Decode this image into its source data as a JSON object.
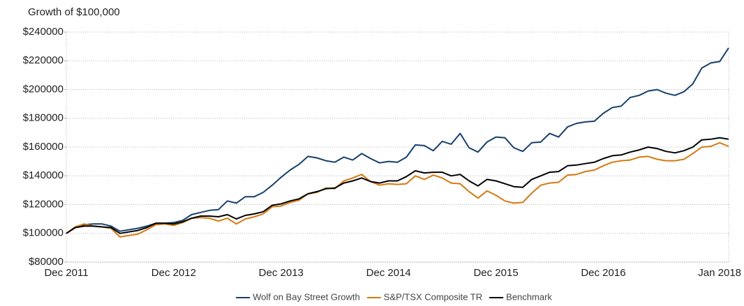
{
  "chart_data": {
    "type": "line",
    "title": "Growth of $100,000",
    "categories": [
      "Dec 2011",
      null,
      null,
      null,
      null,
      null,
      null,
      null,
      null,
      null,
      null,
      null,
      "Dec 2012",
      null,
      null,
      null,
      null,
      null,
      null,
      null,
      null,
      null,
      null,
      null,
      "Dec 2013",
      null,
      null,
      null,
      null,
      null,
      null,
      null,
      null,
      null,
      null,
      null,
      "Dec 2014",
      null,
      null,
      null,
      null,
      null,
      null,
      null,
      null,
      null,
      null,
      null,
      "Dec 2015",
      null,
      null,
      null,
      null,
      null,
      null,
      null,
      null,
      null,
      null,
      null,
      "Dec 2016",
      null,
      null,
      null,
      null,
      null,
      null,
      null,
      null,
      null,
      null,
      null,
      null,
      "Jan 2018",
      null
    ],
    "series": [
      {
        "name": "Wolf on Bay Street Growth",
        "color": "#173f6b",
        "values": [
          100000,
          104000,
          106000,
          106500,
          106500,
          105000,
          101500,
          102500,
          103500,
          105000,
          107000,
          107000,
          107500,
          109000,
          113000,
          114500,
          116000,
          116500,
          122500,
          121000,
          125500,
          125500,
          128500,
          133500,
          139000,
          144000,
          148000,
          153500,
          152500,
          150500,
          149500,
          153000,
          151000,
          155500,
          152000,
          149000,
          150000,
          149500,
          153000,
          161500,
          161000,
          157500,
          164000,
          162000,
          169500,
          159500,
          156500,
          163500,
          167000,
          166500,
          159500,
          157000,
          163000,
          163500,
          169500,
          167000,
          174000,
          176500,
          177500,
          178000,
          183500,
          187500,
          188500,
          194500,
          196000,
          199000,
          200000,
          197500,
          196000,
          198500,
          204000,
          215000,
          218500,
          219500,
          229000
        ]
      },
      {
        "name": "S&P/TSX Composite TR",
        "color": "#d6780f",
        "values": [
          100000,
          104500,
          106500,
          105000,
          104500,
          103500,
          97500,
          98500,
          99500,
          102500,
          106000,
          106500,
          105500,
          107500,
          110500,
          111000,
          110500,
          108500,
          110500,
          106500,
          110000,
          111500,
          113500,
          118500,
          119000,
          121500,
          123000,
          127500,
          128500,
          131500,
          131000,
          136500,
          138500,
          141000,
          136000,
          133500,
          134500,
          134000,
          134500,
          140000,
          137500,
          140500,
          138500,
          135000,
          134500,
          129000,
          124500,
          129500,
          126500,
          122500,
          121000,
          121500,
          128000,
          133500,
          135000,
          135500,
          140500,
          141000,
          143000,
          144000,
          147000,
          149500,
          150500,
          151000,
          153000,
          153500,
          151500,
          150500,
          150500,
          151500,
          155500,
          160000,
          160500,
          163000,
          160500
        ]
      },
      {
        "name": "Benchmark",
        "color": "#000000",
        "values": [
          100000,
          104000,
          105000,
          105000,
          104500,
          104000,
          100000,
          101000,
          102000,
          104000,
          107000,
          107000,
          106500,
          108000,
          110500,
          112000,
          112000,
          111500,
          113000,
          110000,
          112500,
          113500,
          115000,
          119500,
          120500,
          122500,
          124000,
          127500,
          129000,
          131000,
          131500,
          135000,
          136500,
          138500,
          136000,
          135000,
          136500,
          136500,
          139500,
          143500,
          142000,
          142500,
          142500,
          140000,
          141000,
          136500,
          133000,
          137500,
          136500,
          134500,
          132500,
          132000,
          137500,
          140000,
          142500,
          143000,
          147000,
          147500,
          148500,
          149500,
          152000,
          154000,
          154500,
          156500,
          158000,
          160000,
          159000,
          157000,
          156000,
          157500,
          160000,
          165000,
          165500,
          166500,
          165500
        ]
      }
    ],
    "ylim": [
      80000,
      240000
    ],
    "yticks": [
      {
        "value": 80000,
        "label": "$80000"
      },
      {
        "value": 100000,
        "label": "$100000"
      },
      {
        "value": 120000,
        "label": "$120000"
      },
      {
        "value": 140000,
        "label": "$140000"
      },
      {
        "value": 160000,
        "label": "$160000"
      },
      {
        "value": 180000,
        "label": "$180000"
      },
      {
        "value": 200000,
        "label": "$200000"
      },
      {
        "value": 220000,
        "label": "$220000"
      },
      {
        "value": 240000,
        "label": "$240000"
      }
    ],
    "grid": true
  }
}
